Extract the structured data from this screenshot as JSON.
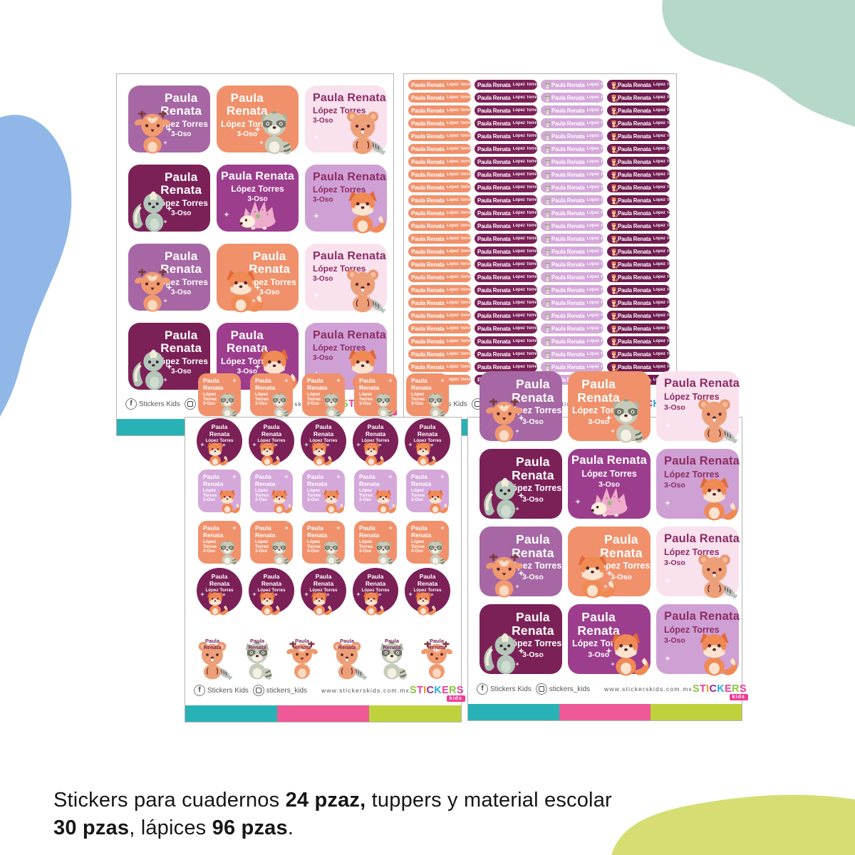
{
  "product_name": {
    "first_line": "Paula",
    "second_line": "Renata",
    "full": "Paula Renata",
    "last": "López Torres",
    "group": "3-Oso"
  },
  "caption": {
    "part1": "Stickers para cuadernos ",
    "bold1": "24 pzaz,",
    "part2": " tuppers y material escolar",
    "bold2": "30 pzas",
    "part3": ", lápices ",
    "bold3": "96 pzas",
    "part4": "."
  },
  "footer": {
    "facebook": "Stickers Kids",
    "instagram": "stickers_kids",
    "website": "www.stickerskids.com.mx",
    "bar_colors": [
      "#29b2b6",
      "#ee5a95",
      "#bfd23e"
    ]
  },
  "logo": {
    "letters": [
      {
        "ch": "S",
        "color": "#8dc63f"
      },
      {
        "ch": "T",
        "color": "#ee3d96"
      },
      {
        "ch": "I",
        "color": "#f7941e"
      },
      {
        "ch": "C",
        "color": "#93278f"
      },
      {
        "ch": "K",
        "color": "#29abe2"
      },
      {
        "ch": "E",
        "color": "#ee3d96"
      },
      {
        "ch": "R",
        "color": "#8dc63f"
      },
      {
        "ch": "S",
        "color": "#ee3d96"
      }
    ],
    "badge": "kids",
    "badge_color": "#ee3d96"
  },
  "colors": {
    "purple": "#a667a4",
    "orange": "#f0916b",
    "pink_light": "#f9e1ee",
    "plum": "#7b2157",
    "purple_mid": "#9d3d8d",
    "lilac": "#cfa0d4",
    "lilac_sq": "#d5a8da",
    "strip_lilac": "#d5a8da",
    "plum2": "#6f1c4f",
    "dark_text": "#8c2c63"
  },
  "blobs": {
    "blue": "#90b7e8",
    "mint": "#b5d8c8",
    "green": "#d6de73"
  },
  "label_cells": [
    [
      {
        "bg": "purple",
        "animal": "deer",
        "apos": "bl",
        "layout": "stack",
        "side": "right",
        "dark": false
      },
      {
        "bg": "orange",
        "animal": "raccoon",
        "apos": "br",
        "layout": "stack",
        "side": "left",
        "dark": false
      },
      {
        "bg": "pink_light",
        "animal": "bear",
        "apos": "br",
        "layout": "line",
        "side": "left",
        "dark": true
      }
    ],
    [
      {
        "bg": "plum",
        "animal": "skunk",
        "apos": "bl",
        "layout": "stack",
        "side": "right",
        "dark": false
      },
      {
        "bg": "purple_mid",
        "animal": "hedgehog",
        "apos": "bc",
        "layout": "line",
        "side": "center",
        "dark": false
      },
      {
        "bg": "lilac",
        "animal": "fox",
        "apos": "br",
        "layout": "line",
        "side": "left",
        "dark": true
      }
    ],
    [
      {
        "bg": "purple",
        "animal": "deer",
        "apos": "bl",
        "layout": "stack",
        "side": "right",
        "dark": false
      },
      {
        "bg": "orange",
        "animal": "fox",
        "apos": "bl",
        "layout": "stack",
        "side": "right",
        "dark": false
      },
      {
        "bg": "pink_light",
        "animal": "bear",
        "apos": "br",
        "layout": "line",
        "side": "left",
        "dark": true
      }
    ],
    [
      {
        "bg": "plum",
        "animal": "skunk",
        "apos": "bl",
        "layout": "stack",
        "side": "right",
        "dark": false
      },
      {
        "bg": "purple_mid",
        "animal": "fox",
        "apos": "br",
        "layout": "stack",
        "side": "left",
        "dark": false
      },
      {
        "bg": "lilac",
        "animal": "fox",
        "apos": "br",
        "layout": "line",
        "side": "left",
        "dark": true
      }
    ]
  ],
  "sheets": {
    "pencil_labels": {
      "rows": 24,
      "columns": [
        {
          "bg": "orange",
          "icon": "raccoon",
          "icon_side": "right"
        },
        {
          "bg": "plum",
          "icon": "fox",
          "icon_side": "right"
        },
        {
          "bg": "strip_lilac",
          "icon": "raccoon",
          "icon_side": "left"
        },
        {
          "bg": "plum2",
          "icon": "fox",
          "icon_side": "left"
        }
      ]
    },
    "material_labels": {
      "rows": [
        {
          "kind": "square",
          "bg": "orange",
          "animal": "raccoon"
        },
        {
          "kind": "circle",
          "bg": "plum",
          "animal": "fox"
        },
        {
          "kind": "square",
          "bg": "lilac_sq",
          "animal": "fox"
        },
        {
          "kind": "square",
          "bg": "orange",
          "animal": "raccoon"
        },
        {
          "kind": "circle",
          "bg": "plum",
          "animal": "fox"
        },
        {
          "kind": "animals",
          "animals": [
            "bear",
            "raccoon",
            "deer",
            "bear",
            "raccoon",
            "deer"
          ]
        }
      ]
    }
  }
}
